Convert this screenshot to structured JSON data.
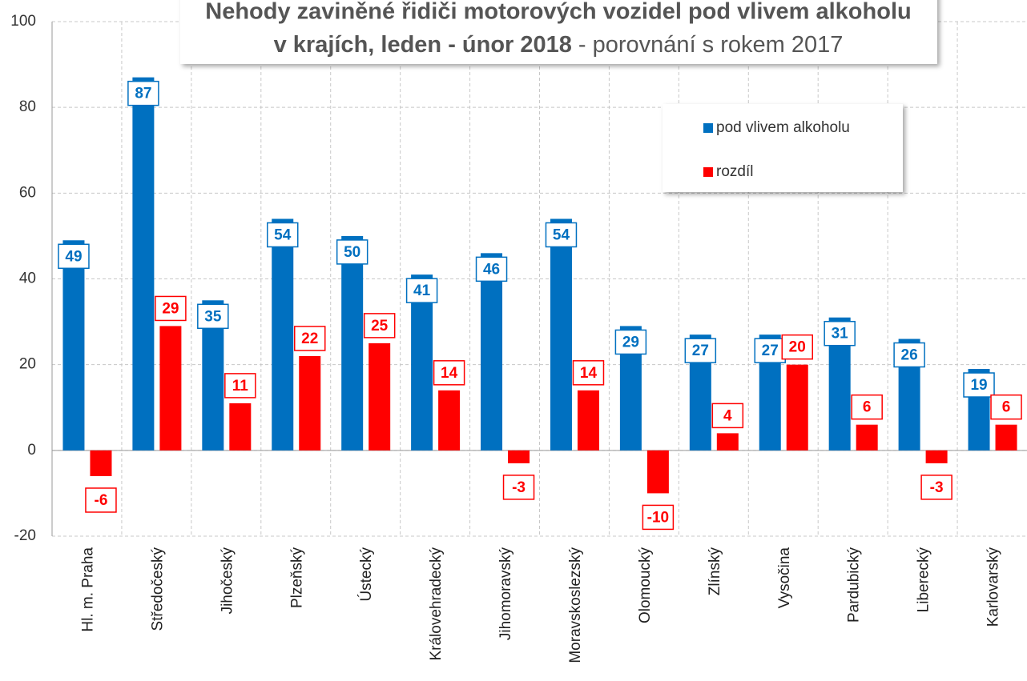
{
  "chart_data": {
    "type": "bar",
    "title": [
      "Nehody zaviněné řidiči motorových vozidel pod vlivem alkoholu",
      "v krajích, leden - únor 2018",
      "- porovnání s rokem 2017"
    ],
    "categories": [
      "Hl. m. Praha",
      "Středočeský",
      "Jihočeský",
      "Plzeňský",
      "Ústecký",
      "Královehradecký",
      "Jihomoravský",
      "Moravskoslezský",
      "Olomoucký",
      "Zlínský",
      "Vysočina",
      "Pardubický",
      "Liberecký",
      "Karlovarský"
    ],
    "series": [
      {
        "name": "pod vlivem alkoholu",
        "color": "#0070c0",
        "values": [
          49,
          87,
          35,
          54,
          50,
          41,
          46,
          54,
          29,
          27,
          27,
          31,
          26,
          19
        ]
      },
      {
        "name": "rozdíl",
        "color": "#ff0000",
        "values": [
          -6,
          29,
          11,
          22,
          25,
          14,
          -3,
          14,
          -10,
          4,
          20,
          6,
          -3,
          6
        ]
      }
    ],
    "ylim": [
      -20,
      100
    ],
    "yticks": [
      -20,
      0,
      20,
      40,
      60,
      80,
      100
    ],
    "grid": true,
    "legend": "upper right"
  }
}
